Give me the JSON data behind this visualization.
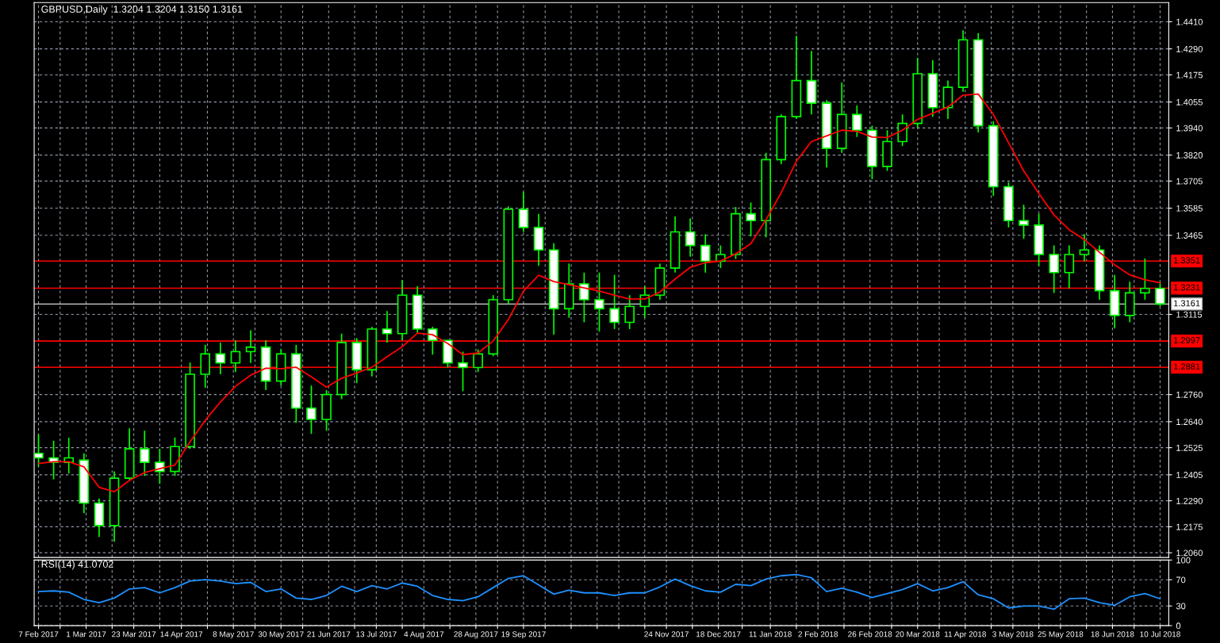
{
  "chart_data": [
    {
      "type": "candlestick",
      "title": "GBPUSD,Daily  1.3204 1.3204 1.3150 1.3161",
      "x": [
        "2017-02-07",
        "2017-02-14",
        "2017-02-21",
        "2017-02-28",
        "2017-03-07",
        "2017-03-14",
        "2017-03-21",
        "2017-03-28",
        "2017-04-04",
        "2017-04-11",
        "2017-04-18",
        "2017-04-25",
        "2017-05-02",
        "2017-05-09",
        "2017-05-16",
        "2017-05-23",
        "2017-05-30",
        "2017-06-06",
        "2017-06-13",
        "2017-06-20",
        "2017-06-27",
        "2017-07-04",
        "2017-07-11",
        "2017-07-18",
        "2017-07-25",
        "2017-08-01",
        "2017-08-08",
        "2017-08-15",
        "2017-08-22",
        "2017-08-29",
        "2017-09-05",
        "2017-09-12",
        "2017-09-19",
        "2017-09-26",
        "2017-10-03",
        "2017-10-10",
        "2017-10-17",
        "2017-10-24",
        "2017-10-31",
        "2017-11-07",
        "2017-11-14",
        "2017-11-21",
        "2017-11-28",
        "2017-12-05",
        "2017-12-12",
        "2017-12-19",
        "2017-12-26",
        "2018-01-02",
        "2018-01-09",
        "2018-01-16",
        "2018-01-23",
        "2018-01-30",
        "2018-02-06",
        "2018-02-13",
        "2018-02-20",
        "2018-02-27",
        "2018-03-06",
        "2018-03-13",
        "2018-03-20",
        "2018-03-27",
        "2018-04-03",
        "2018-04-10",
        "2018-04-17",
        "2018-04-24",
        "2018-05-01",
        "2018-05-08",
        "2018-05-15",
        "2018-05-22",
        "2018-05-29",
        "2018-06-05",
        "2018-06-12",
        "2018-06-19",
        "2018-06-26",
        "2018-07-03",
        "2018-07-10"
      ],
      "series": [
        {
          "type": "candlestick",
          "color": "#00ff00",
          "ohlc": [
            [
              1.25,
              1.2583,
              1.2442,
              1.248
            ],
            [
              1.248,
              1.2555,
              1.2385,
              1.246
            ],
            [
              1.246,
              1.2569,
              1.2411,
              1.248
            ],
            [
              1.247,
              1.25,
              1.2235,
              1.228
            ],
            [
              1.228,
              1.23,
              1.213,
              1.218
            ],
            [
              1.218,
              1.242,
              1.2109,
              1.239
            ],
            [
              1.239,
              1.2611,
              1.238,
              1.252
            ],
            [
              1.252,
              1.26,
              1.24,
              1.246
            ],
            [
              1.246,
              1.252,
              1.2365,
              1.242
            ],
            [
              1.242,
              1.257,
              1.24,
              1.253
            ],
            [
              1.253,
              1.2902,
              1.252,
              1.285
            ],
            [
              1.285,
              1.298,
              1.279,
              1.294
            ],
            [
              1.294,
              1.299,
              1.285,
              1.29
            ],
            [
              1.29,
              1.3,
              1.286,
              1.295
            ],
            [
              1.295,
              1.3045,
              1.29,
              1.297
            ],
            [
              1.297,
              1.3,
              1.278,
              1.282
            ],
            [
              1.282,
              1.296,
              1.28,
              1.294
            ],
            [
              1.294,
              1.298,
              1.2635,
              1.27
            ],
            [
              1.27,
              1.28,
              1.2586,
              1.265
            ],
            [
              1.265,
              1.278,
              1.26,
              1.276
            ],
            [
              1.276,
              1.303,
              1.274,
              1.299
            ],
            [
              1.299,
              1.301,
              1.2811,
              1.287
            ],
            [
              1.287,
              1.306,
              1.284,
              1.305
            ],
            [
              1.305,
              1.313,
              1.299,
              1.303
            ],
            [
              1.303,
              1.3267,
              1.3,
              1.32
            ],
            [
              1.32,
              1.324,
              1.303,
              1.305
            ],
            [
              1.305,
              1.306,
              1.2937,
              1.3
            ],
            [
              1.3,
              1.3,
              1.288,
              1.29
            ],
            [
              1.29,
              1.295,
              1.2775,
              1.288
            ],
            [
              1.288,
              1.296,
              1.286,
              1.294
            ],
            [
              1.294,
              1.32,
              1.293,
              1.318
            ],
            [
              1.318,
              1.3593,
              1.316,
              1.358
            ],
            [
              1.358,
              1.3656,
              1.348,
              1.35
            ],
            [
              1.35,
              1.356,
              1.333,
              1.34
            ],
            [
              1.34,
              1.343,
              1.3025,
              1.314
            ],
            [
              1.314,
              1.334,
              1.31,
              1.325
            ],
            [
              1.325,
              1.33,
              1.308,
              1.318
            ],
            [
              1.318,
              1.33,
              1.3039,
              1.314
            ],
            [
              1.314,
              1.329,
              1.305,
              1.308
            ],
            [
              1.308,
              1.32,
              1.305,
              1.315
            ],
            [
              1.315,
              1.324,
              1.31,
              1.32
            ],
            [
              1.32,
              1.334,
              1.318,
              1.332
            ],
            [
              1.332,
              1.3548,
              1.33,
              1.348
            ],
            [
              1.348,
              1.354,
              1.337,
              1.342
            ],
            [
              1.342,
              1.347,
              1.33,
              1.335
            ],
            [
              1.335,
              1.342,
              1.332,
              1.338
            ],
            [
              1.338,
              1.359,
              1.336,
              1.356
            ],
            [
              1.356,
              1.361,
              1.346,
              1.353
            ],
            [
              1.353,
              1.383,
              1.3456,
              1.38
            ],
            [
              1.38,
              1.4,
              1.378,
              1.399
            ],
            [
              1.399,
              1.4348,
              1.398,
              1.415
            ],
            [
              1.415,
              1.4281,
              1.4,
              1.405
            ],
            [
              1.405,
              1.4063,
              1.3765,
              1.385
            ],
            [
              1.385,
              1.4141,
              1.383,
              1.4
            ],
            [
              1.4,
              1.404,
              1.39,
              1.393
            ],
            [
              1.393,
              1.395,
              1.3713,
              1.377
            ],
            [
              1.377,
              1.393,
              1.375,
              1.388
            ],
            [
              1.388,
              1.4,
              1.386,
              1.396
            ],
            [
              1.396,
              1.425,
              1.394,
              1.418
            ],
            [
              1.418,
              1.424,
              1.399,
              1.403
            ],
            [
              1.403,
              1.415,
              1.398,
              1.412
            ],
            [
              1.412,
              1.4372,
              1.41,
              1.433
            ],
            [
              1.433,
              1.436,
              1.392,
              1.395
            ],
            [
              1.395,
              1.397,
              1.364,
              1.368
            ],
            [
              1.368,
              1.37,
              1.35,
              1.353
            ],
            [
              1.353,
              1.36,
              1.345,
              1.351
            ],
            [
              1.351,
              1.356,
              1.333,
              1.338
            ],
            [
              1.338,
              1.342,
              1.321,
              1.33
            ],
            [
              1.33,
              1.342,
              1.323,
              1.338
            ],
            [
              1.338,
              1.347,
              1.335,
              1.34
            ],
            [
              1.34,
              1.342,
              1.318,
              1.322
            ],
            [
              1.322,
              1.329,
              1.3053,
              1.311
            ],
            [
              1.311,
              1.326,
              1.308,
              1.321
            ],
            [
              1.321,
              1.3362,
              1.318,
              1.323
            ],
            [
              1.323,
              1.326,
              1.315,
              1.3161
            ]
          ]
        },
        {
          "type": "line",
          "color": "#ff0000",
          "values": [
            1.2455,
            1.2463,
            1.2463,
            1.244,
            1.235,
            1.233,
            1.238,
            1.2415,
            1.2432,
            1.2448,
            1.2551,
            1.2646,
            1.2727,
            1.2797,
            1.2846,
            1.2877,
            1.2874,
            1.2881,
            1.2839,
            1.2793,
            1.2832,
            1.2856,
            1.2881,
            1.2927,
            1.2972,
            1.3032,
            1.3025,
            1.2986,
            1.2937,
            1.2944,
            1.2997,
            1.3092,
            1.3218,
            1.3288,
            1.326,
            1.3246,
            1.3232,
            1.3218,
            1.32,
            1.3183,
            1.3183,
            1.3214,
            1.3271,
            1.3323,
            1.3344,
            1.3351,
            1.3383,
            1.3428,
            1.3534,
            1.3653,
            1.3793,
            1.388,
            1.3905,
            1.393,
            1.3925,
            1.39,
            1.3898,
            1.393,
            1.3978,
            1.4005,
            1.4033,
            1.4085,
            1.409,
            1.4,
            1.3875,
            1.375,
            1.365,
            1.3555,
            1.349,
            1.3446,
            1.339,
            1.3334,
            1.329,
            1.3268,
            1.3255
          ]
        }
      ],
      "xlim": [
        "2017-02-05",
        "2018-07-14"
      ],
      "xticks": [
        {
          "value": "2017-02-07",
          "label": null
        },
        {
          "value": "2017-02-17",
          "label": null
        },
        {
          "value": "2017-03-01",
          "label": null
        },
        {
          "value": "2017-03-13",
          "label": null
        },
        {
          "value": "2017-03-23",
          "label": null
        },
        {
          "value": "2017-04-04",
          "label": null
        },
        {
          "value": "2017-04-14",
          "label": null
        },
        {
          "value": "2017-04-26",
          "label": null
        },
        {
          "value": "2017-05-08",
          "label": null
        },
        {
          "value": "2017-05-18",
          "label": null
        },
        {
          "value": "2017-05-30",
          "label": null
        },
        {
          "value": "2017-06-09",
          "label": null
        },
        {
          "value": "2017-06-21",
          "label": null
        },
        {
          "value": "2017-07-03",
          "label": null
        },
        {
          "value": "2017-07-13",
          "label": null
        },
        {
          "value": "2017-07-25",
          "label": null
        },
        {
          "value": "2017-08-04",
          "label": null
        },
        {
          "value": "2017-08-16",
          "label": null
        },
        {
          "value": "2017-08-28",
          "label": null
        },
        {
          "value": "2017-09-07",
          "label": null
        },
        {
          "value": "2017-09-19",
          "label": null
        },
        {
          "value": "2017-09-29",
          "label": null
        },
        {
          "value": "2017-10-11",
          "label": null
        },
        {
          "value": "2017-10-23",
          "label": null
        },
        {
          "value": "2017-11-02",
          "label": null
        },
        {
          "value": "2017-11-14",
          "label": null
        },
        {
          "value": "2017-11-24",
          "label": null
        },
        {
          "value": "2017-12-06",
          "label": null
        },
        {
          "value": "2017-12-18",
          "label": null
        },
        {
          "value": "2017-12-29",
          "label": null
        },
        {
          "value": "2018-01-11",
          "label": null
        },
        {
          "value": "2018-01-23",
          "label": null
        },
        {
          "value": "2018-02-02",
          "label": null
        },
        {
          "value": "2018-02-14",
          "label": null
        },
        {
          "value": "2018-02-26",
          "label": null
        },
        {
          "value": "2018-03-08",
          "label": null
        },
        {
          "value": "2018-03-20",
          "label": null
        },
        {
          "value": "2018-03-30",
          "label": null
        },
        {
          "value": "2018-04-11",
          "label": null
        },
        {
          "value": "2018-04-23",
          "label": null
        },
        {
          "value": "2018-05-03",
          "label": null
        },
        {
          "value": "2018-05-15",
          "label": null
        },
        {
          "value": "2018-05-25",
          "label": null
        },
        {
          "value": "2018-06-06",
          "label": null
        },
        {
          "value": "2018-06-18",
          "label": null
        },
        {
          "value": "2018-06-28",
          "label": null
        },
        {
          "value": "2018-07-10",
          "label": null
        }
      ],
      "ylim": [
        1.2039,
        1.4495
      ],
      "yticks": [
        {
          "value": 1.206,
          "label": "1.2060"
        },
        1.2175,
        {
          "value": 1.229,
          "label": "1.2290"
        },
        1.2405,
        1.2525,
        {
          "value": 1.264,
          "label": "1.2640"
        },
        {
          "value": 1.276,
          "label": "1.2760"
        },
        1.3115,
        1.3465,
        1.3585,
        1.3705,
        {
          "value": 1.382,
          "label": "1.3820"
        },
        {
          "value": 1.394,
          "label": "1.3940"
        },
        1.4055,
        1.4175,
        {
          "value": 1.429,
          "label": "1.4290"
        },
        {
          "value": 1.441,
          "label": "1.4410"
        }
      ],
      "ref_lines": [
        {
          "axis": "y",
          "value": 1.3351,
          "label": "1.3351",
          "color": "#ff0000"
        },
        {
          "axis": "y",
          "value": 1.3231,
          "label": "1.3231",
          "color": "#ff0000"
        },
        {
          "axis": "y",
          "value": 1.3161,
          "label": "1.3161",
          "color": "#c0c0c0"
        },
        {
          "axis": "y",
          "value": 1.2997,
          "label": "1.2997",
          "color": "#ff0000"
        },
        {
          "axis": "y",
          "value": 1.2881,
          "label": "1.2881",
          "color": "#ff0000"
        }
      ],
      "grid": true,
      "legend": false,
      "tick_labels": "y"
    },
    {
      "type": "line",
      "title": "RSI(14) 41.0702",
      "x": [
        "2017-02-07",
        "2017-02-14",
        "2017-02-21",
        "2017-02-28",
        "2017-03-07",
        "2017-03-14",
        "2017-03-21",
        "2017-03-28",
        "2017-04-04",
        "2017-04-11",
        "2017-04-18",
        "2017-04-25",
        "2017-05-02",
        "2017-05-09",
        "2017-05-16",
        "2017-05-23",
        "2017-05-30",
        "2017-06-06",
        "2017-06-13",
        "2017-06-20",
        "2017-06-27",
        "2017-07-04",
        "2017-07-11",
        "2017-07-18",
        "2017-07-25",
        "2017-08-01",
        "2017-08-08",
        "2017-08-15",
        "2017-08-22",
        "2017-08-29",
        "2017-09-05",
        "2017-09-12",
        "2017-09-19",
        "2017-09-26",
        "2017-10-03",
        "2017-10-10",
        "2017-10-17",
        "2017-10-24",
        "2017-10-31",
        "2017-11-07",
        "2017-11-14",
        "2017-11-21",
        "2017-11-28",
        "2017-12-05",
        "2017-12-12",
        "2017-12-19",
        "2017-12-26",
        "2018-01-02",
        "2018-01-09",
        "2018-01-16",
        "2018-01-23",
        "2018-01-30",
        "2018-02-06",
        "2018-02-13",
        "2018-02-20",
        "2018-02-27",
        "2018-03-06",
        "2018-03-13",
        "2018-03-20",
        "2018-03-27",
        "2018-04-03",
        "2018-04-10",
        "2018-04-17",
        "2018-04-24",
        "2018-05-01",
        "2018-05-08",
        "2018-05-15",
        "2018-05-22",
        "2018-05-29",
        "2018-06-05",
        "2018-06-12",
        "2018-06-19",
        "2018-06-26",
        "2018-07-03",
        "2018-07-10"
      ],
      "series": [
        {
          "color": "#1e90ff",
          "values": [
            52,
            53,
            51,
            40,
            35,
            42,
            56,
            58,
            50,
            58,
            68,
            70,
            68,
            64,
            66,
            52,
            56,
            42,
            40,
            46,
            60,
            52,
            61,
            56,
            65,
            60,
            46,
            40,
            38,
            44,
            58,
            72,
            76,
            62,
            48,
            54,
            50,
            50,
            46,
            50,
            50,
            59,
            71,
            61,
            53,
            51,
            63,
            61,
            71,
            76,
            78,
            73,
            52,
            57,
            51,
            43,
            49,
            55,
            64,
            53,
            58,
            67,
            47,
            41,
            27,
            30,
            30,
            25,
            41,
            42,
            35,
            31,
            44,
            49,
            41
          ]
        }
      ],
      "xlim": [
        "2017-02-05",
        "2018-07-14"
      ],
      "xticks": [
        {
          "value": "2017-02-07",
          "label": "7 Feb 2017"
        },
        {
          "value": "2017-02-17",
          "label": null
        },
        {
          "value": "2017-03-01",
          "label": "1 Mar 2017"
        },
        {
          "value": "2017-03-13",
          "label": null
        },
        {
          "value": "2017-03-23",
          "label": "23 Mar 2017"
        },
        {
          "value": "2017-04-04",
          "label": null
        },
        {
          "value": "2017-04-14",
          "label": "14 Apr 2017"
        },
        {
          "value": "2017-04-26",
          "label": null
        },
        {
          "value": "2017-05-08",
          "label": "8 May 2017"
        },
        {
          "value": "2017-05-18",
          "label": null
        },
        {
          "value": "2017-05-30",
          "label": "30 May 2017"
        },
        {
          "value": "2017-06-09",
          "label": null
        },
        {
          "value": "2017-06-21",
          "label": "21 Jun 2017"
        },
        {
          "value": "2017-07-03",
          "label": null
        },
        {
          "value": "2017-07-13",
          "label": "13 Jul 2017"
        },
        {
          "value": "2017-07-25",
          "label": null
        },
        {
          "value": "2017-08-04",
          "label": "4 Aug 2017"
        },
        {
          "value": "2017-08-16",
          "label": null
        },
        {
          "value": "2017-08-28",
          "label": "28 Aug 2017"
        },
        {
          "value": "2017-09-07",
          "label": null
        },
        {
          "value": "2017-09-19",
          "label": "19 Sep 2017"
        },
        {
          "value": "2017-09-29",
          "label": null
        },
        {
          "value": "2017-10-11",
          "label": null
        },
        {
          "value": "2017-10-23",
          "label": null
        },
        {
          "value": "2017-11-02",
          "label": null
        },
        {
          "value": "2017-11-14",
          "label": null
        },
        {
          "value": "2017-11-24",
          "label": "24 Nov 2017"
        },
        {
          "value": "2017-12-06",
          "label": null
        },
        {
          "value": "2017-12-18",
          "label": "18 Dec 2017"
        },
        {
          "value": "2017-12-29",
          "label": null
        },
        {
          "value": "2018-01-11",
          "label": "11 Jan 2018"
        },
        {
          "value": "2018-01-23",
          "label": null
        },
        {
          "value": "2018-02-02",
          "label": "2 Feb 2018"
        },
        {
          "value": "2018-02-14",
          "label": null
        },
        {
          "value": "2018-02-26",
          "label": "26 Feb 2018"
        },
        {
          "value": "2018-03-08",
          "label": null
        },
        {
          "value": "2018-03-20",
          "label": "20 Mar 2018"
        },
        {
          "value": "2018-03-30",
          "label": null
        },
        {
          "value": "2018-04-11",
          "label": "11 Apr 2018"
        },
        {
          "value": "2018-04-23",
          "label": null
        },
        {
          "value": "2018-05-03",
          "label": "3 May 2018"
        },
        {
          "value": "2018-05-15",
          "label": null
        },
        {
          "value": "2018-05-25",
          "label": "25 May 2018"
        },
        {
          "value": "2018-06-06",
          "label": null
        },
        {
          "value": "2018-06-18",
          "label": "18 Jun 2018"
        },
        {
          "value": "2018-06-28",
          "label": null
        },
        {
          "value": "2018-07-10",
          "label": "10 Jul 2018"
        }
      ],
      "ylim": [
        0,
        100
      ],
      "yticks": [
        0,
        30,
        70,
        100
      ],
      "grid": true,
      "legend": false
    }
  ]
}
